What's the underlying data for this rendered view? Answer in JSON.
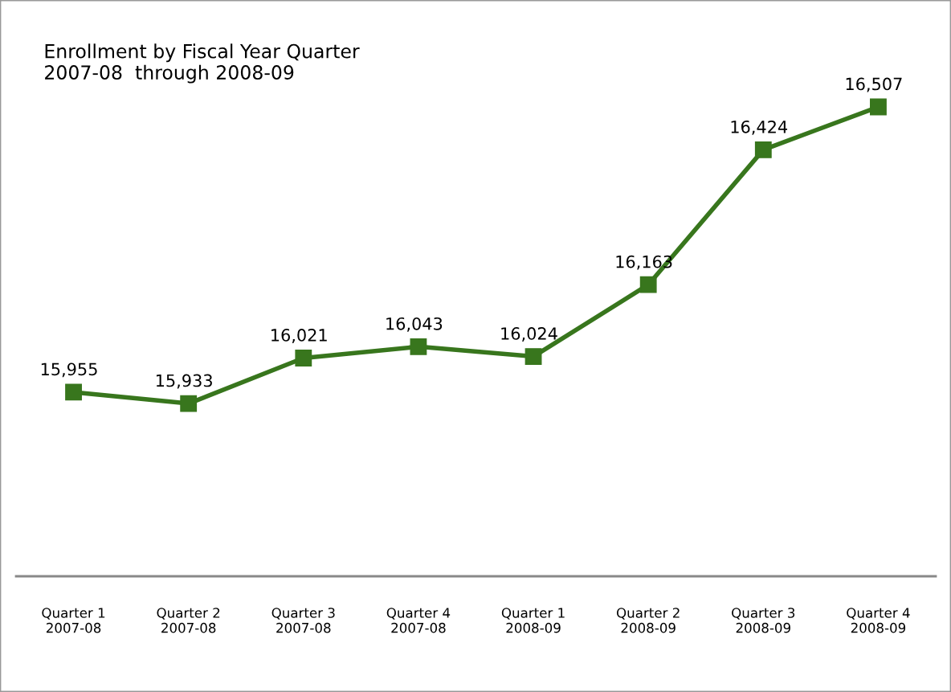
{
  "chart_data": {
    "type": "line",
    "title": "Enrollment by Fiscal Year Quarter",
    "subtitle": "2007-08  through 2008-09",
    "categories": [
      "Quarter 1\n2007-08",
      "Quarter 2\n2007-08",
      "Quarter 3\n2007-08",
      "Quarter 4\n2007-08",
      "Quarter 1\n2008-09",
      "Quarter 2\n2008-09",
      "Quarter 3\n2008-09",
      "Quarter 4\n2008-09"
    ],
    "series": [
      {
        "color": "#38761d",
        "values": [
          15955,
          15933,
          16021,
          16043,
          16024,
          16163,
          16424,
          16507
        ],
        "value_labels": [
          "15,955",
          "15,933",
          "16,021",
          "16,043",
          "16,024",
          "16,163",
          "16,424",
          "16,507"
        ]
      }
    ],
    "marker": "square",
    "line_style": "solid"
  }
}
